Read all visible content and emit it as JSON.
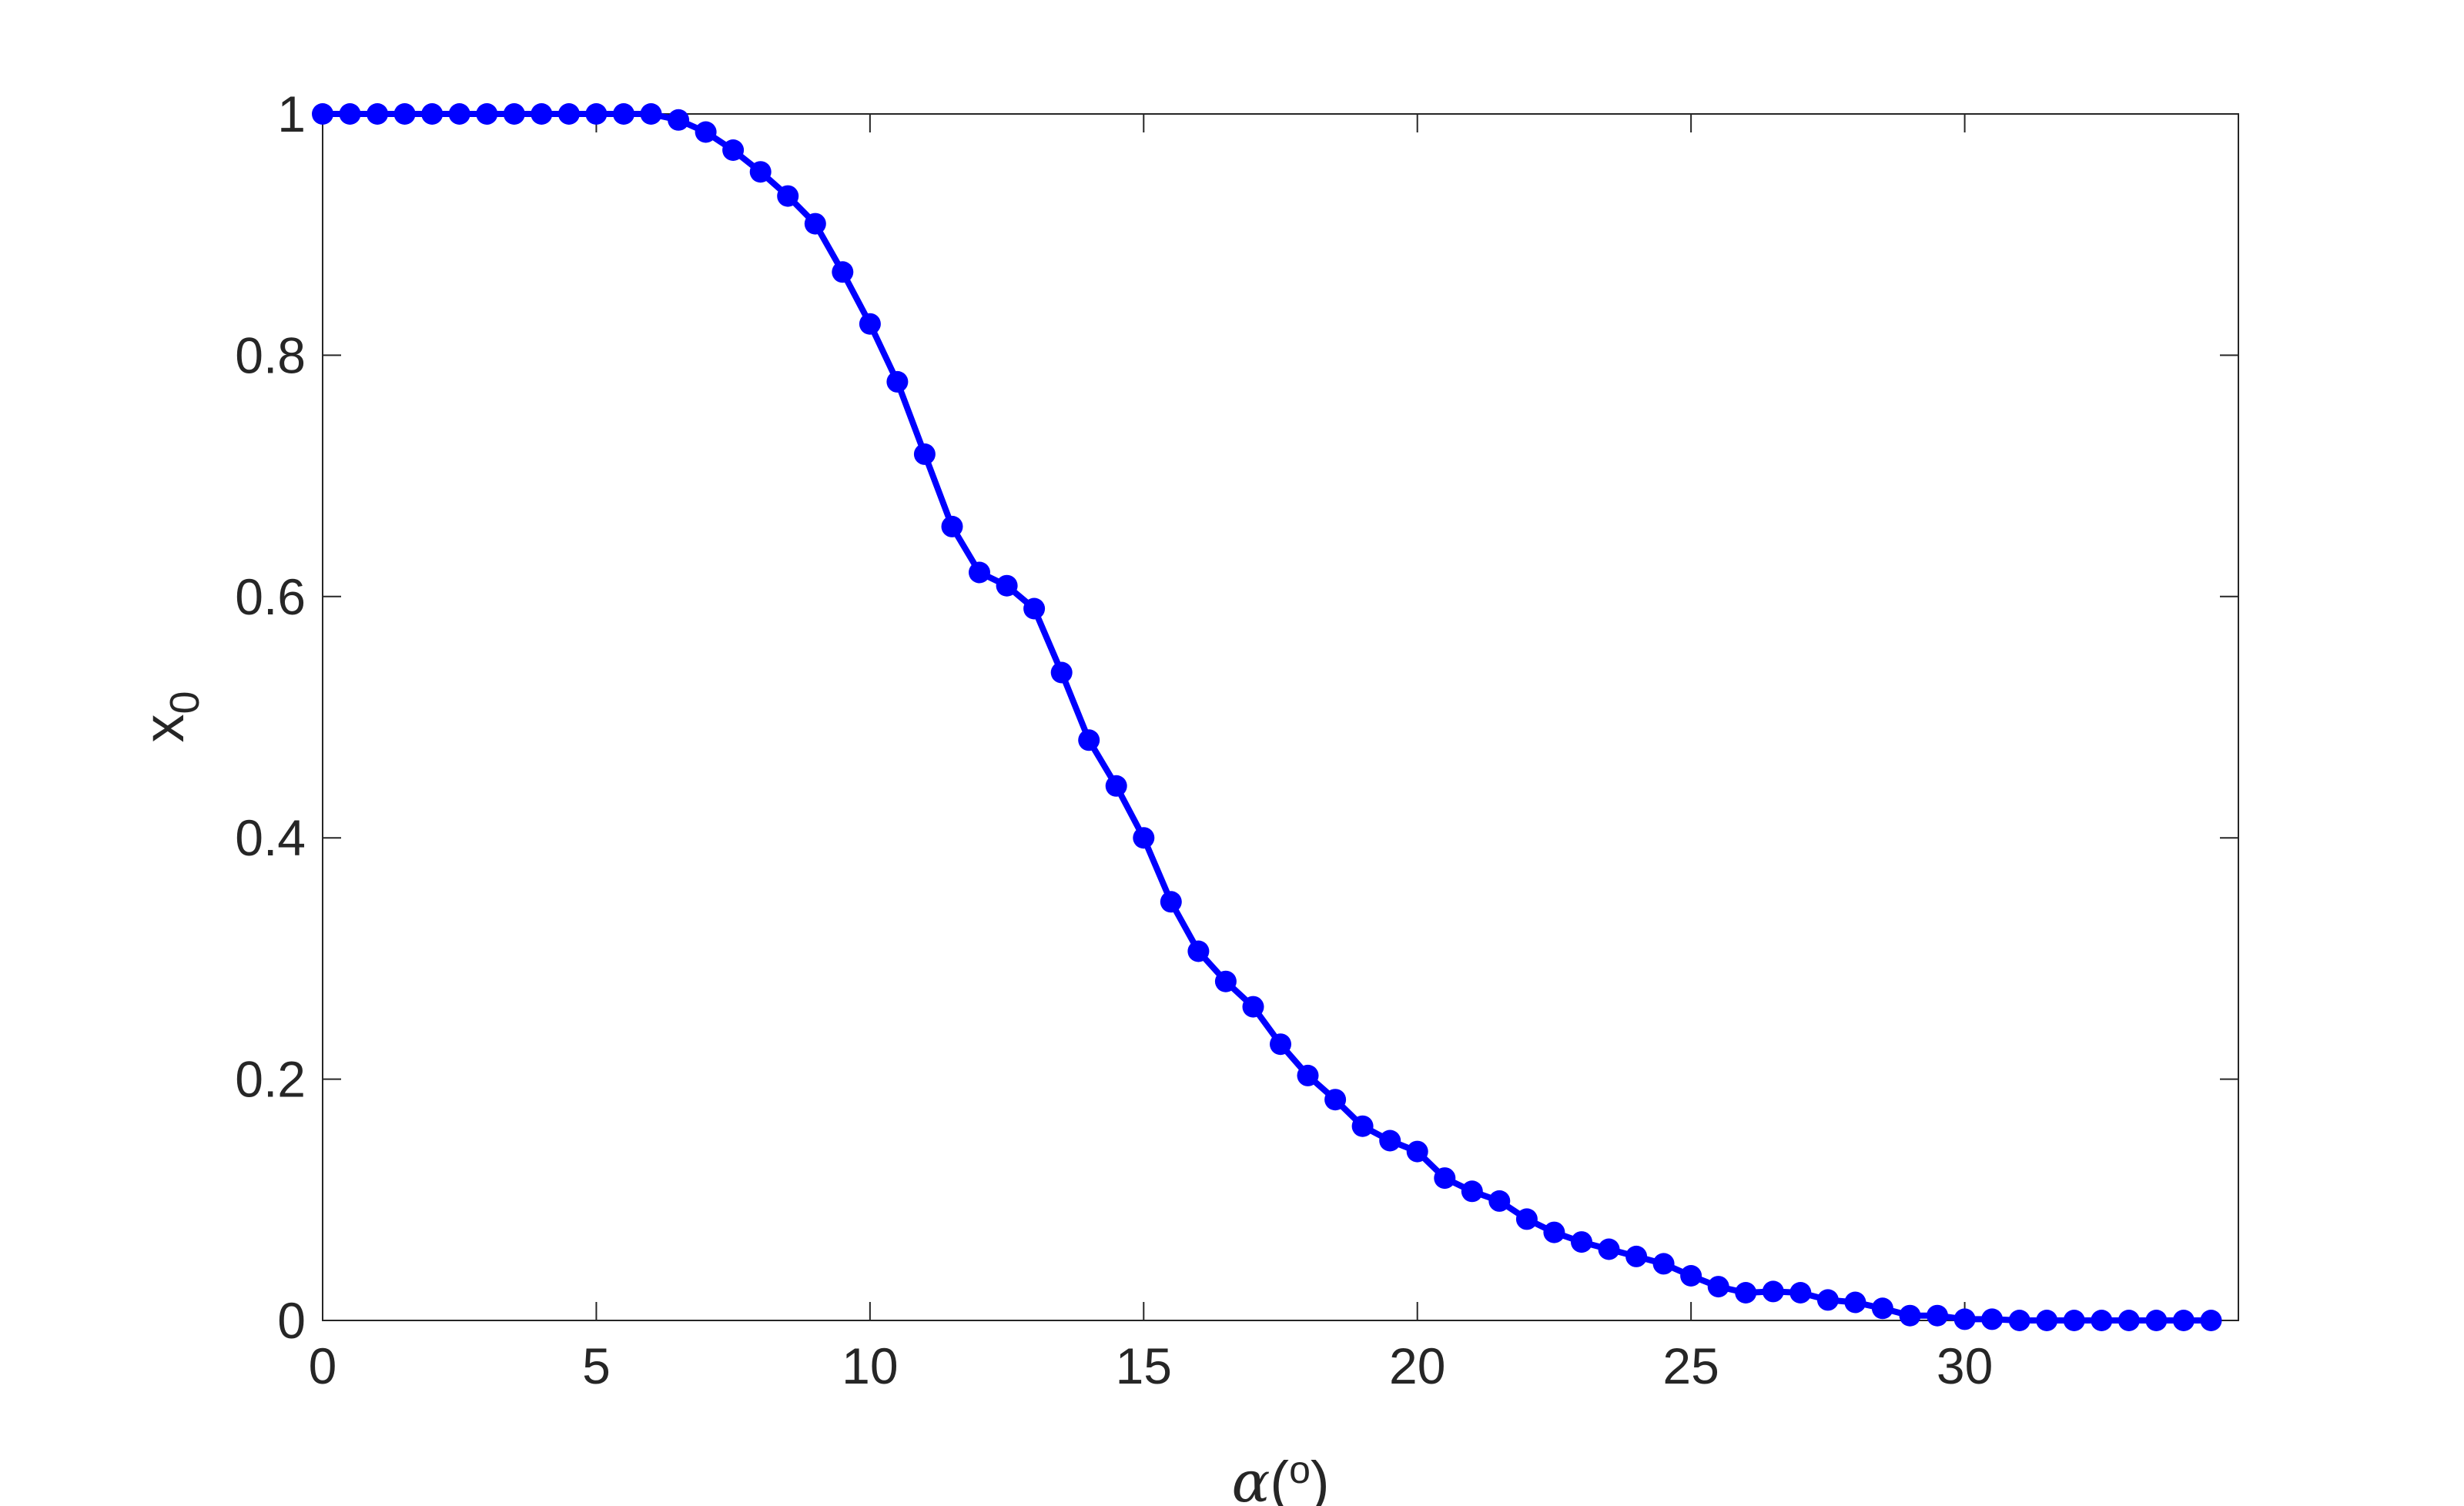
{
  "chart_data": {
    "type": "line",
    "title": "",
    "xlabel": {
      "symbol": "α",
      "open": "(",
      "superscript": "o",
      "close": ")"
    },
    "ylabel": {
      "base": "x",
      "subscript": "0"
    },
    "xlim": [
      0,
      35
    ],
    "ylim": [
      0,
      1
    ],
    "xticks": [
      0,
      5,
      10,
      15,
      20,
      25,
      30
    ],
    "xtick_labels": [
      "0",
      "5",
      "10",
      "15",
      "20",
      "25",
      "30"
    ],
    "yticks": [
      0,
      0.2,
      0.4,
      0.6,
      0.8,
      1
    ],
    "ytick_labels": [
      "0",
      "0.2",
      "0.4",
      "0.6",
      "0.8",
      "1"
    ],
    "grid": false,
    "legend": "none",
    "series": [
      {
        "color": "#0000FF",
        "marker": "filled-circle",
        "x": [
          0,
          0.5,
          1,
          1.5,
          2,
          2.5,
          3,
          3.5,
          4,
          4.5,
          5,
          5.5,
          6,
          6.5,
          7,
          7.5,
          8,
          8.5,
          9,
          9.5,
          10,
          10.5,
          11,
          11.5,
          12,
          12.5,
          13,
          13.5,
          14,
          14.5,
          15,
          15.5,
          16,
          16.5,
          17,
          17.5,
          18,
          18.5,
          19,
          19.5,
          20,
          20.5,
          21,
          21.5,
          22,
          22.5,
          23,
          23.5,
          24,
          24.5,
          25,
          25.5,
          26,
          26.5,
          27,
          27.5,
          28,
          28.5,
          29,
          29.5,
          30,
          30.5,
          31,
          31.5,
          32,
          32.5,
          33,
          33.5,
          34,
          34.5
        ],
        "y": [
          1.0,
          1.0,
          1.0,
          1.0,
          1.0,
          1.0,
          1.0,
          1.0,
          1.0,
          1.0,
          1.0,
          1.0,
          1.0,
          0.995,
          0.985,
          0.97,
          0.952,
          0.932,
          0.909,
          0.869,
          0.826,
          0.778,
          0.718,
          0.658,
          0.62,
          0.609,
          0.59,
          0.537,
          0.481,
          0.443,
          0.4,
          0.347,
          0.306,
          0.281,
          0.26,
          0.229,
          0.203,
          0.183,
          0.161,
          0.149,
          0.14,
          0.118,
          0.107,
          0.099,
          0.084,
          0.073,
          0.065,
          0.059,
          0.053,
          0.047,
          0.037,
          0.028,
          0.023,
          0.024,
          0.023,
          0.017,
          0.015,
          0.01,
          0.004,
          0.004,
          0.001,
          0.001,
          0.0,
          0.0,
          0.0,
          0.0,
          0.0,
          0.0,
          0.0,
          0.0
        ]
      }
    ]
  }
}
